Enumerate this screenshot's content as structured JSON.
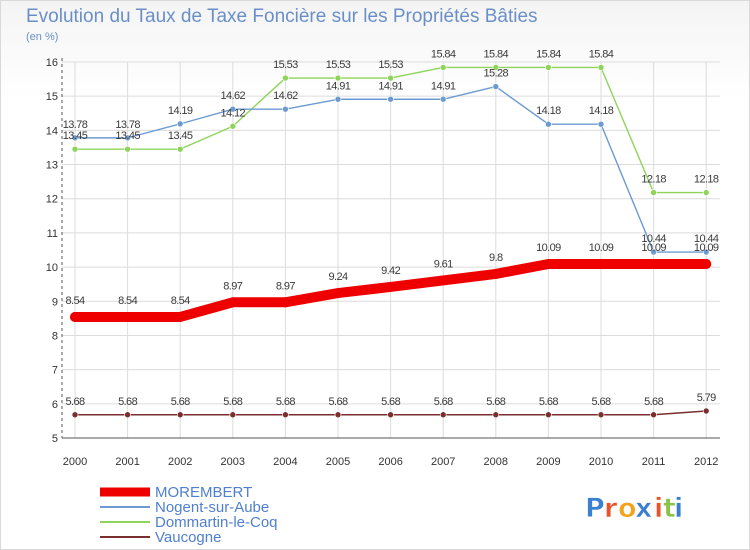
{
  "chart_data": {
    "type": "line",
    "title": "Evolution du Taux de Taxe Foncière sur les Propriétés Bâties",
    "subtitle": "(en %)",
    "xlabel": "",
    "ylabel": "",
    "ylim": [
      5,
      16
    ],
    "yticks": [
      5,
      6,
      7,
      8,
      9,
      10,
      11,
      12,
      13,
      14,
      15,
      16
    ],
    "grid": true,
    "legend_position": "bottom-left",
    "categories": [
      "2000",
      "2001",
      "2002",
      "2003",
      "2004",
      "2005",
      "2006",
      "2007",
      "2008",
      "2009",
      "2010",
      "2011",
      "2012"
    ],
    "series": [
      {
        "name": "MOREMBERT",
        "color": "#ee0000",
        "values": [
          8.54,
          8.54,
          8.54,
          8.97,
          8.97,
          9.24,
          9.42,
          9.61,
          9.8,
          10.09,
          10.09,
          10.09,
          10.09
        ],
        "labels": [
          "8.54",
          "8.54",
          "8.54",
          "8.97",
          "8.97",
          "9.24",
          "9.42",
          "9.61",
          "9.8",
          "10.09",
          "10.09",
          "10.09",
          "10.09"
        ]
      },
      {
        "name": "Nogent-sur-Aube",
        "color": "#6d9bd1",
        "values": [
          13.78,
          13.78,
          14.19,
          14.62,
          14.62,
          14.91,
          14.91,
          14.91,
          15.28,
          14.18,
          14.18,
          10.44,
          10.44
        ],
        "labels": [
          "13.78",
          "13.78",
          "14.19",
          "14.62",
          "14.62",
          "14.91",
          "14.91",
          "14.91",
          "15.28",
          "14.18",
          "14.18",
          "10.44",
          "10.44"
        ]
      },
      {
        "name": "Dommartin-le-Coq",
        "color": "#8fd45a",
        "values": [
          13.45,
          13.45,
          13.45,
          14.12,
          15.53,
          15.53,
          15.53,
          15.84,
          15.84,
          15.84,
          15.84,
          12.18,
          12.18
        ],
        "labels": [
          "13.45",
          "13.45",
          "13.45",
          "14.12",
          "15.53",
          "15.53",
          "15.53",
          "15.84",
          "15.84",
          "15.84",
          "15.84",
          "12.18",
          "12.18"
        ]
      },
      {
        "name": "Vaucogne",
        "color": "#7a2e2e",
        "values": [
          5.68,
          5.68,
          5.68,
          5.68,
          5.68,
          5.68,
          5.68,
          5.68,
          5.68,
          5.68,
          5.68,
          5.68,
          5.79
        ],
        "labels": [
          "5.68",
          "5.68",
          "5.68",
          "5.68",
          "5.68",
          "5.68",
          "5.68",
          "5.68",
          "5.68",
          "5.68",
          "5.68",
          "5.68",
          "5.79"
        ]
      }
    ]
  },
  "logo": {
    "text": "Proxiti",
    "colors": [
      "#3a7fd0",
      "#e8532a",
      "#f2a21c",
      "#3a7fd0",
      "#e8532a",
      "#8bc34a",
      "#3a7fd0"
    ]
  }
}
